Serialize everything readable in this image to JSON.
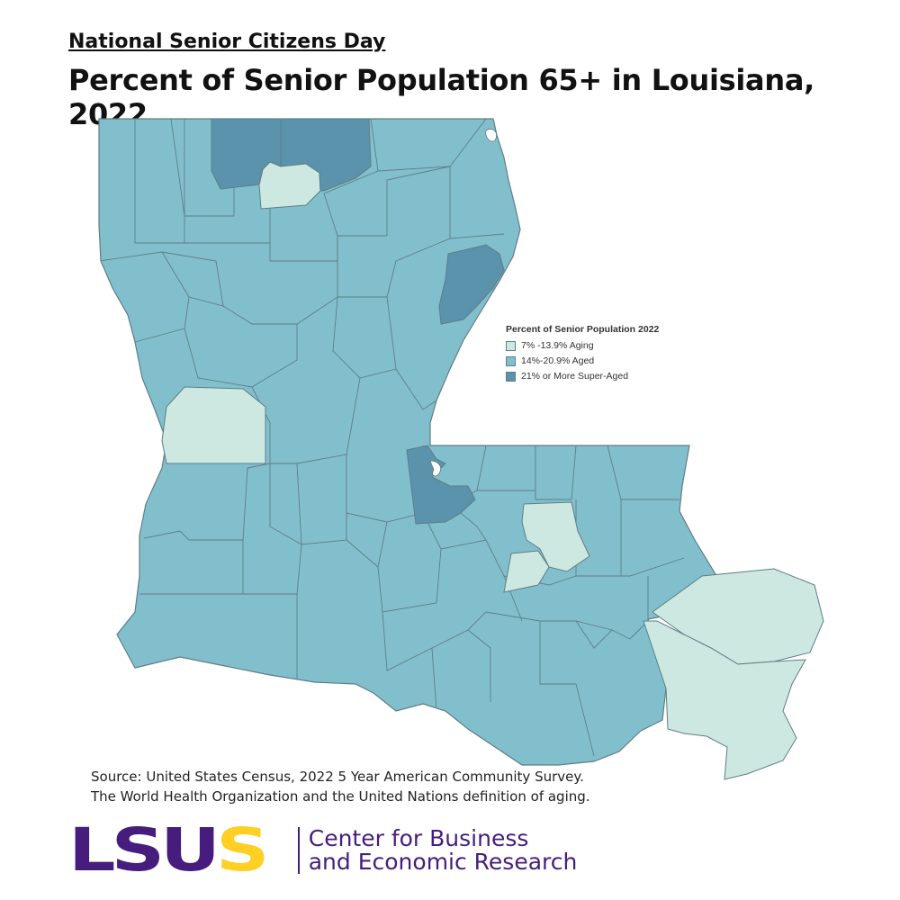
{
  "header": {
    "kicker": "National Senior Citizens Day",
    "title": "Percent of Senior Population 65+ in Louisiana, 2022"
  },
  "legend": {
    "title": "Percent of Senior Population 2022",
    "items": [
      {
        "label": "7% -13.9% Aging",
        "color": "#cce8e1"
      },
      {
        "label": "14%-20.9% Aged",
        "color": "#82bfcc"
      },
      {
        "label": "21% or More Super-Aged",
        "color": "#5a93ab"
      }
    ]
  },
  "map": {
    "state": "Louisiana",
    "border_color": "#5f7d86",
    "highlighted_parishes": {
      "aging": [
        "Bossier",
        "Lincoln",
        "Vernon",
        "Livingston",
        "Ascension",
        "St. Bernard",
        "Plaquemines"
      ],
      "super_aged": [
        "Union",
        "Claiborne",
        "Tensas",
        "Pointe Coupee"
      ]
    }
  },
  "footer": {
    "source_line1": "Source: United States Census, 2022 5 Year American Community Survey.",
    "source_line2": "The World Health Organization and the United Nations definition of aging."
  },
  "logo": {
    "mark_purple": "LSU",
    "mark_gold": "S",
    "line1": "Center for Business",
    "line2": "and Economic Research",
    "purple": "#461d7c",
    "gold": "#fdd023"
  }
}
